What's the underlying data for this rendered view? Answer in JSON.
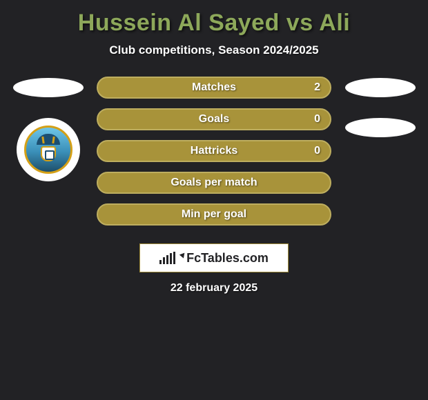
{
  "title": "Hussein Al Sayed vs Ali",
  "title_color": "#8da85a",
  "subtitle": "Club competitions, Season 2024/2025",
  "background_color": "#222225",
  "bar_fill_color": "#a8933a",
  "bar_border_color": "#beae5f",
  "bar_with_value_indices": [
    0,
    1,
    2
  ],
  "stats": [
    {
      "label": "Matches",
      "value": "2"
    },
    {
      "label": "Goals",
      "value": "0"
    },
    {
      "label": "Hattricks",
      "value": "0"
    },
    {
      "label": "Goals per match",
      "value": ""
    },
    {
      "label": "Min per goal",
      "value": ""
    }
  ],
  "watermark": "FcTables.com",
  "footer_date": "22 february 2025",
  "left_flags_count": 2,
  "right_flags_count": 2,
  "show_left_club_badge": true
}
